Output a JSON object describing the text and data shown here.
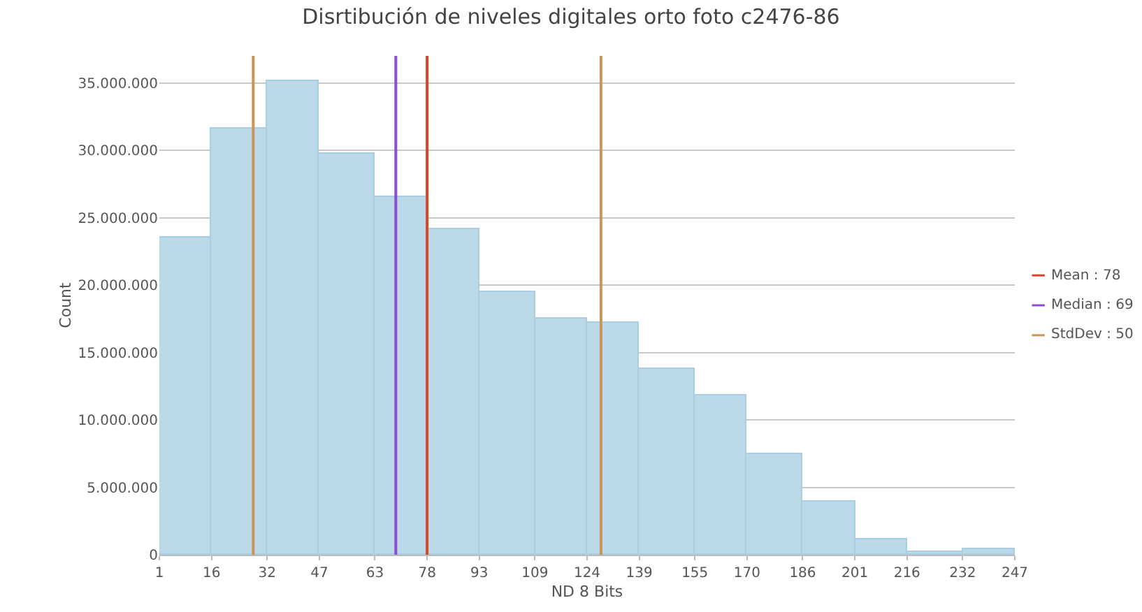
{
  "chart_data": {
    "type": "histogram",
    "title": "Disrtibución de niveles digitales orto foto c2476-86",
    "xlabel": "ND 8 Bits",
    "ylabel": "Count",
    "bins": [
      1,
      16,
      32,
      47,
      63,
      78,
      93,
      109,
      124,
      139,
      155,
      170,
      186,
      201,
      216,
      232,
      247
    ],
    "values": [
      23500000,
      31600000,
      35100000,
      29700000,
      26500000,
      24200000,
      19500000,
      17500000,
      17200000,
      13800000,
      11800000,
      7500000,
      3900000,
      1100000,
      200000,
      400000
    ],
    "color": "#bcd9e8",
    "xlim": [
      1,
      247
    ],
    "xticks": [
      1,
      16,
      32,
      47,
      63,
      78,
      93,
      109,
      124,
      139,
      155,
      170,
      186,
      201,
      216,
      232,
      247
    ],
    "ylim": [
      0,
      37000000
    ],
    "yticks": [
      {
        "value": 0,
        "label": "0"
      },
      {
        "value": 5000000,
        "label": "5.000.000"
      },
      {
        "value": 10000000,
        "label": "10.000.000"
      },
      {
        "value": 15000000,
        "label": "15.000.000"
      },
      {
        "value": 20000000,
        "label": "20.000.000"
      },
      {
        "value": 25000000,
        "label": "25.000.000"
      },
      {
        "value": 30000000,
        "label": "30.000.000"
      },
      {
        "value": 35000000,
        "label": "35.000.000"
      }
    ],
    "grid": "y",
    "annotations": [
      "Mean : 78",
      "Median : 69",
      "StdDev : 50"
    ],
    "ref_lines": [
      {
        "axis": "x",
        "value": 78,
        "label": null,
        "color": "#d9452a"
      },
      {
        "axis": "x",
        "value": 69,
        "label": null,
        "color": "#8a4ecf"
      },
      {
        "axis": "x",
        "value": 28,
        "label": null,
        "color": "#c8955a"
      },
      {
        "axis": "x",
        "value": 128,
        "label": null,
        "color": "#c8955a"
      }
    ]
  }
}
